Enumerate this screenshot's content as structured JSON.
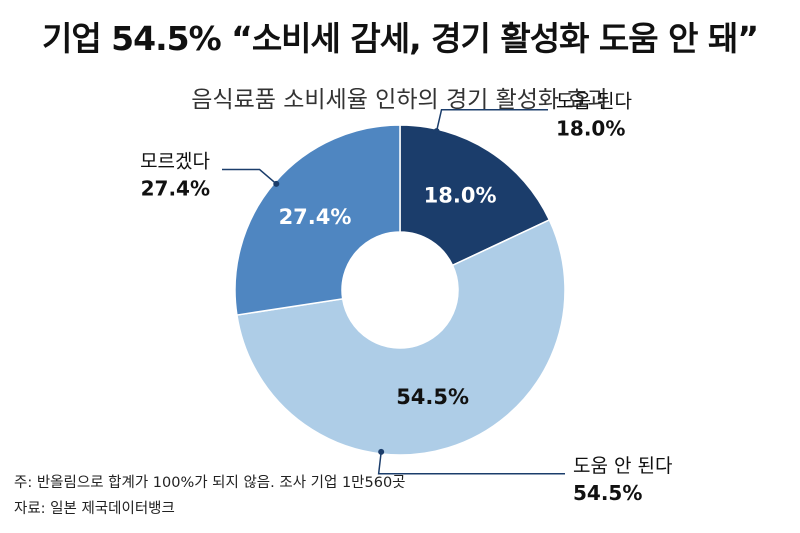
{
  "title": "기업 54.5% “소비세 감세, 경기 활성화 도움 안 돼”",
  "subtitle": "음식료품 소비세율 인하의 경기 활성화 효과",
  "chart_data": {
    "type": "pie",
    "title": "기업 54.5% “소비세 감세, 경기 활성화 도움 안 돼”",
    "subtitle": "음식료품 소비세율 인하의 경기 활성화 효과",
    "slices": [
      {
        "label": "도움 된다",
        "value": 18.0,
        "display": "18.0%",
        "color": "#1b3d6b"
      },
      {
        "label": "도움 안 된다",
        "value": 54.5,
        "display": "54.5%",
        "color": "#aecde7"
      },
      {
        "label": "모르겠다",
        "value": 27.4,
        "display": "27.4%",
        "color": "#4f86c1"
      }
    ],
    "donut": true
  },
  "notes": {
    "footnote": "주: 반올림으로 합계가 100%가 되지 않음. 조사 기업 1만560곳",
    "source": "자료: 일본 제국데이터뱅크"
  }
}
